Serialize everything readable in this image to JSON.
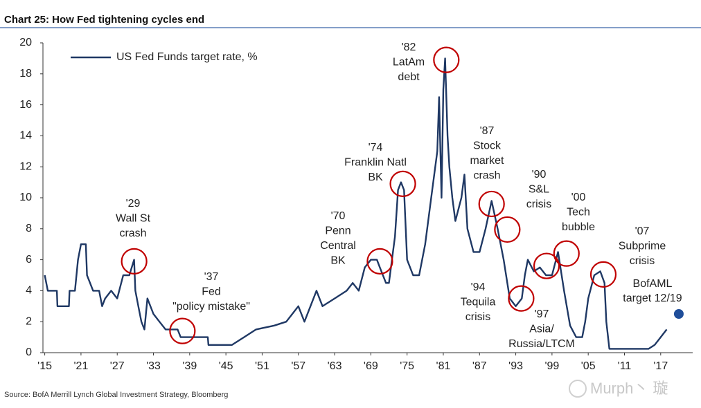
{
  "chart_data": {
    "type": "line",
    "title": "Chart 25: How Fed tightening cycles end",
    "source": "Source:  BofA Merrill Lynch Global Investment Strategy, Bloomberg",
    "watermark": "Murph丶 璇",
    "xlim": [
      1914.7,
      2022.3
    ],
    "ylim": [
      0,
      20
    ],
    "yticks": [
      0,
      2,
      4,
      6,
      8,
      10,
      12,
      14,
      16,
      18,
      20
    ],
    "xticks": [
      {
        "value": 1915,
        "label": "'15"
      },
      {
        "value": 1921,
        "label": "'21"
      },
      {
        "value": 1927,
        "label": "'27"
      },
      {
        "value": 1933,
        "label": "'33"
      },
      {
        "value": 1939,
        "label": "'39"
      },
      {
        "value": 1945,
        "label": "'45"
      },
      {
        "value": 1951,
        "label": "'51"
      },
      {
        "value": 1957,
        "label": "'57"
      },
      {
        "value": 1963,
        "label": "'63"
      },
      {
        "value": 1969,
        "label": "'69"
      },
      {
        "value": 1975,
        "label": "'75"
      },
      {
        "value": 1981,
        "label": "'81"
      },
      {
        "value": 1987,
        "label": "'87"
      },
      {
        "value": 1993,
        "label": "'93"
      },
      {
        "value": 1999,
        "label": "'99"
      },
      {
        "value": 2005,
        "label": "'05"
      },
      {
        "value": 2011,
        "label": "'11"
      },
      {
        "value": 2017,
        "label": "'17"
      }
    ],
    "series": [
      {
        "name": "US Fed Funds target rate, %",
        "color": "#1f3864",
        "x": [
          1915,
          1915.5,
          1917,
          1917.1,
          1919,
          1919.1,
          1920,
          1920.5,
          1921,
          1921.8,
          1922,
          1922.5,
          1923,
          1924,
          1924.5,
          1925,
          1926,
          1927,
          1928,
          1929,
          1929.8,
          1930,
          1930.5,
          1931,
          1931.5,
          1932,
          1933,
          1934,
          1935,
          1937,
          1937.5,
          1940,
          1942,
          1942.1,
          1946,
          1948,
          1950,
          1953,
          1955,
          1956,
          1957,
          1958,
          1959,
          1960,
          1961,
          1963,
          1965,
          1966,
          1967,
          1968,
          1969,
          1970,
          1970.5,
          1971,
          1971.5,
          1972,
          1973,
          1973.5,
          1974,
          1974.5,
          1975,
          1976,
          1977,
          1978,
          1979,
          1980,
          1980.3,
          1980.7,
          1981,
          1981.3,
          1981.7,
          1982,
          1982.5,
          1983,
          1984,
          1984.5,
          1985,
          1986,
          1987,
          1988,
          1989,
          1990,
          1991,
          1992,
          1993,
          1994,
          1994.5,
          1995,
          1996,
          1997,
          1998,
          1999,
          2000,
          2001,
          2002,
          2003,
          2004,
          2004.5,
          2005,
          2006,
          2007,
          2007.7,
          2008,
          2008.5,
          2015,
          2016,
          2017,
          2018
        ],
        "values": [
          5,
          4,
          4,
          3,
          3,
          4,
          4,
          6,
          7,
          7,
          5,
          4.5,
          4,
          4,
          3,
          3.5,
          4,
          3.5,
          5,
          5,
          6,
          4,
          3,
          2,
          1.5,
          3.5,
          2.5,
          2,
          1.5,
          1.5,
          1,
          1,
          1,
          0.5,
          0.5,
          1,
          1.5,
          1.75,
          2,
          2.5,
          3,
          2,
          3,
          4,
          3,
          3.5,
          4,
          4.5,
          4,
          5.5,
          6,
          6,
          5.5,
          5,
          4.5,
          4.5,
          7.5,
          10.5,
          11,
          10.5,
          6,
          5,
          5,
          7,
          10,
          13,
          16.5,
          10,
          17,
          19,
          14,
          12,
          10,
          8.5,
          10,
          11.5,
          8,
          6.5,
          6.5,
          8,
          9.8,
          8,
          6,
          3.5,
          3,
          3.5,
          5,
          6,
          5.25,
          5.5,
          5,
          5,
          6.5,
          4,
          1.75,
          1,
          1,
          2,
          3.5,
          5,
          5.25,
          4.5,
          2,
          0.25,
          0.25,
          0.5,
          1,
          1.5
        ]
      }
    ],
    "forecast": {
      "label": [
        "BofAML",
        "target 12/19"
      ],
      "x": 2020,
      "y": 2.5,
      "color": "#1f4e9a"
    },
    "annotations": [
      {
        "label": [
          "'29",
          "Wall St",
          "crash"
        ],
        "x": 1929.8,
        "y": 5.9
      },
      {
        "label": [
          "'37",
          "Fed",
          "\"policy mistake\""
        ],
        "x": 1937.8,
        "y": 1.4
      },
      {
        "label": [
          "'70",
          "Penn",
          "Central",
          "BK"
        ],
        "x": 1970.5,
        "y": 5.9
      },
      {
        "label": [
          "'74",
          "Franklin Natl",
          "BK"
        ],
        "x": 1974.3,
        "y": 10.9
      },
      {
        "label": [
          "'82",
          "LatAm",
          "debt"
        ],
        "x": 1981.5,
        "y": 18.9
      },
      {
        "label": [
          "'87",
          "Stock",
          "market",
          "crash"
        ],
        "x": 1989,
        "y": 9.6
      },
      {
        "label": [
          "'90",
          "S&L",
          "crisis"
        ],
        "x": 1991.6,
        "y": 7.95
      },
      {
        "label": [
          "'94",
          "Tequila",
          "crisis"
        ],
        "x": 1993.9,
        "y": 3.5
      },
      {
        "label": [
          "'97",
          "Asia/",
          "Russia/LTCM"
        ],
        "x": 1998.1,
        "y": 5.6
      },
      {
        "label": [
          "'00",
          "Tech",
          "bubble"
        ],
        "x": 2001.4,
        "y": 6.4
      },
      {
        "label": [
          "'07",
          "Subprime",
          "crisis"
        ],
        "x": 2007.5,
        "y": 5.05
      }
    ],
    "circle_color": "#c00000"
  }
}
